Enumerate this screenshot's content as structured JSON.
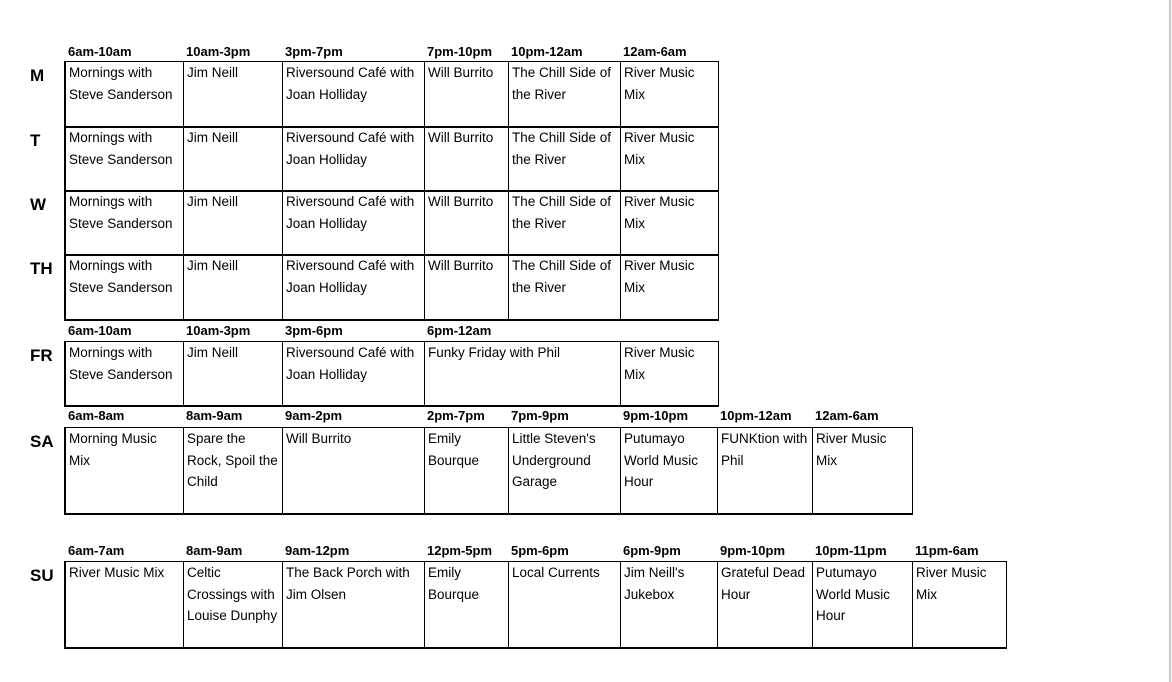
{
  "schedule": [
    {
      "day": "M",
      "headers": [
        "6am-10am",
        "10am-3pm",
        "3pm-7pm",
        "7pm-10pm",
        "10pm-12am",
        "12am-6am"
      ],
      "shows": [
        "Mornings with Steve Sanderson",
        "Jim Neill",
        "Riversound Café with Joan Holliday",
        "Will Burrito",
        "The Chill Side of the River",
        "River Music Mix"
      ]
    },
    {
      "day": "T",
      "headers": [],
      "shows": [
        "Mornings with Steve Sanderson",
        "Jim Neill",
        "Riversound Café with Joan Holliday",
        "Will Burrito",
        "The Chill Side of the River",
        "River Music Mix"
      ]
    },
    {
      "day": "W",
      "headers": [],
      "shows": [
        "Mornings with Steve Sanderson",
        "Jim Neill",
        "Riversound Café with Joan Holliday",
        "Will Burrito",
        "The Chill Side of the River",
        "River Music Mix"
      ]
    },
    {
      "day": "TH",
      "headers": [],
      "shows": [
        "Mornings with Steve Sanderson",
        "Jim Neill",
        "Riversound Café with Joan Holliday",
        "Will Burrito",
        "The Chill Side of the River",
        "River Music Mix"
      ]
    },
    {
      "day": "FR",
      "headers": [
        "6am-10am",
        "10am-3pm",
        "3pm-6pm",
        "6pm-12am",
        ""
      ],
      "shows": [
        "Mornings with Steve Sanderson",
        "Jim Neill",
        "Riversound Café with Joan Holliday",
        "Funky Friday with Phil",
        "River Music Mix"
      ]
    },
    {
      "day": "SA",
      "headers": [
        "6am-8am",
        "8am-9am",
        "9am-2pm",
        "2pm-7pm",
        "7pm-9pm",
        "9pm-10pm",
        "10pm-12am",
        "12am-6am"
      ],
      "shows": [
        "Morning Music Mix",
        "Spare the Rock, Spoil the Child",
        "Will Burrito",
        "Emily Bourque",
        "Little Steven's Underground Garage",
        "Putumayo World Music Hour",
        "FUNKtion with Phil",
        "River Music Mix"
      ]
    },
    {
      "day": "SU",
      "headers": [
        "6am-7am",
        "8am-9am",
        "9am-12pm",
        "12pm-5pm",
        "5pm-6pm",
        "6pm-9pm",
        "9pm-10pm",
        "10pm-11pm",
        "11pm-6am"
      ],
      "shows": [
        "River Music Mix",
        "Celtic Crossings with Louise Dunphy",
        "The Back Porch with Jim Olsen",
        "Emily Bourque",
        "Local Currents",
        "Jim Neill's Jukebox",
        "Grateful Dead Hour",
        "Putumayo World Music Hour",
        "River Music Mix"
      ]
    }
  ]
}
